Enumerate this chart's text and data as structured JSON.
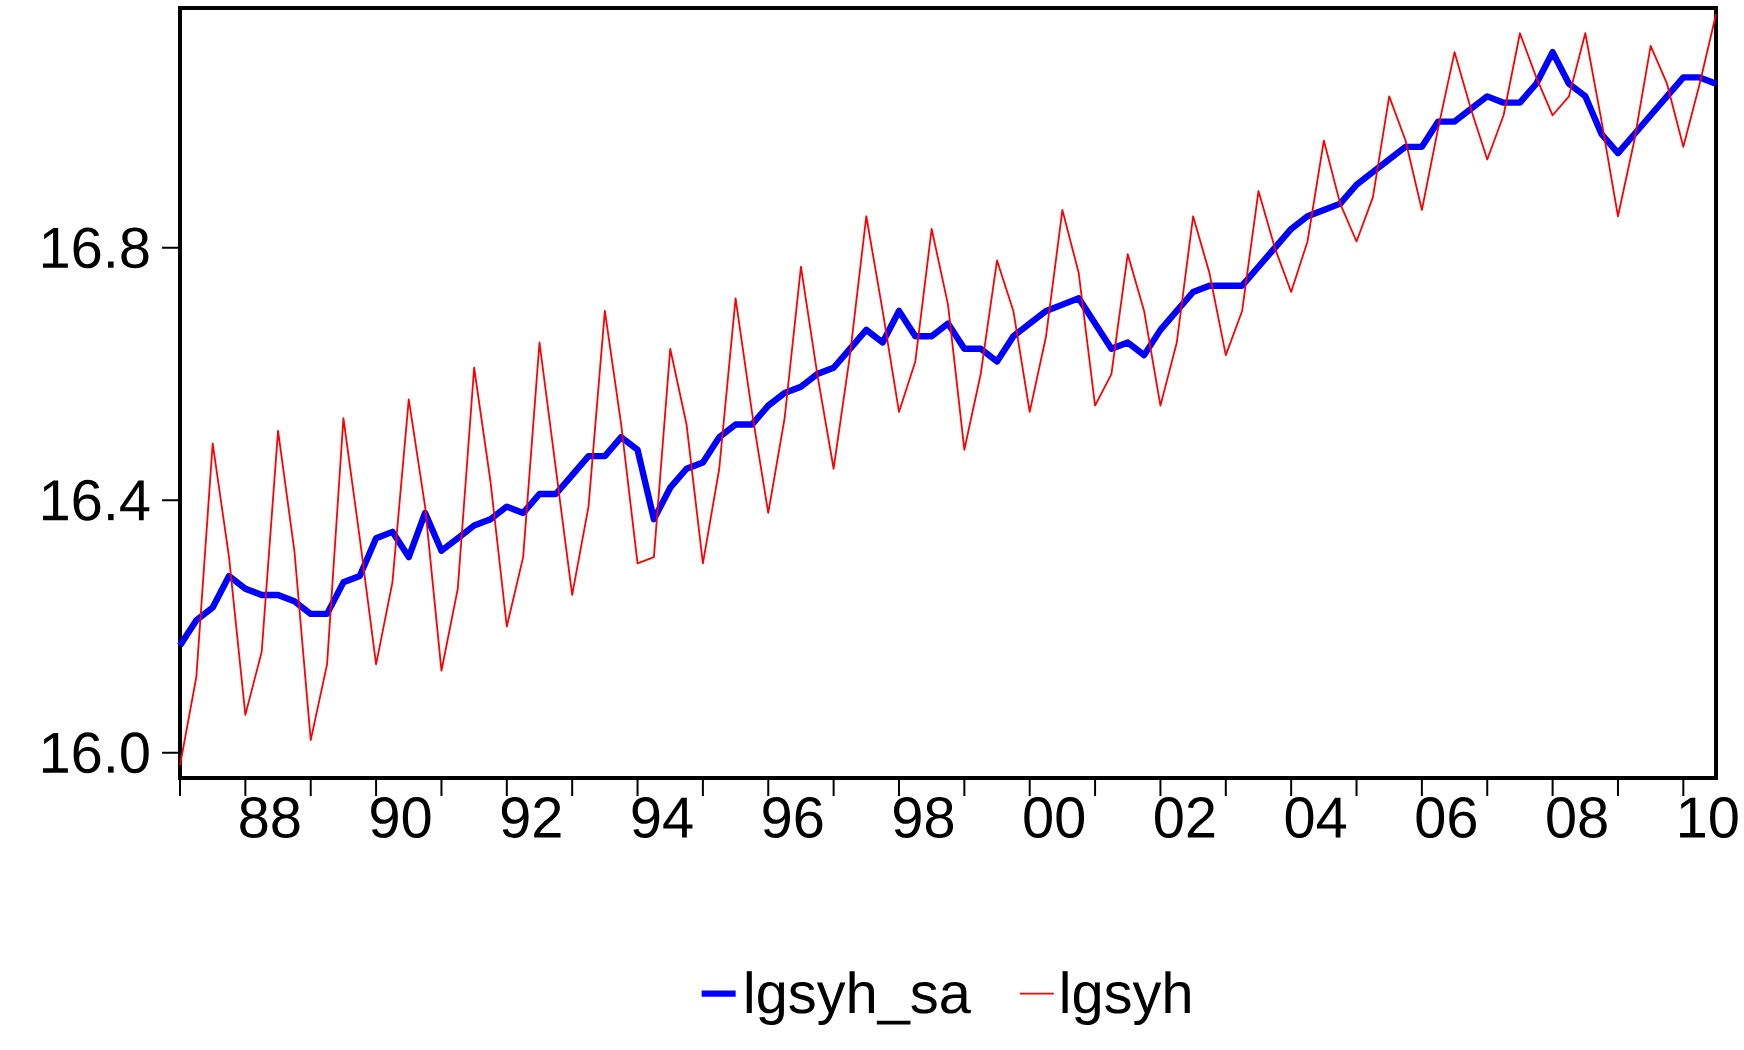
{
  "chart_data": {
    "type": "line",
    "x": [
      "1987-01",
      "1987-04",
      "1987-07",
      "1987-10",
      "1988-01",
      "1988-04",
      "1988-07",
      "1988-10",
      "1989-01",
      "1989-04",
      "1989-07",
      "1989-10",
      "1990-01",
      "1990-04",
      "1990-07",
      "1990-10",
      "1991-01",
      "1991-04",
      "1991-07",
      "1991-10",
      "1992-01",
      "1992-04",
      "1992-07",
      "1992-10",
      "1993-01",
      "1993-04",
      "1993-07",
      "1993-10",
      "1994-01",
      "1994-04",
      "1994-07",
      "1994-10",
      "1995-01",
      "1995-04",
      "1995-07",
      "1995-10",
      "1996-01",
      "1996-04",
      "1996-07",
      "1996-10",
      "1997-01",
      "1997-04",
      "1997-07",
      "1997-10",
      "1998-01",
      "1998-04",
      "1998-07",
      "1998-10",
      "1999-01",
      "1999-04",
      "1999-07",
      "1999-10",
      "2000-01",
      "2000-04",
      "2000-07",
      "2000-10",
      "2001-01",
      "2001-04",
      "2001-07",
      "2001-10",
      "2002-01",
      "2002-04",
      "2002-07",
      "2002-10",
      "2003-01",
      "2003-04",
      "2003-07",
      "2003-10",
      "2004-01",
      "2004-04",
      "2004-07",
      "2004-10",
      "2005-01",
      "2005-04",
      "2005-07",
      "2005-10",
      "2006-01",
      "2006-04",
      "2006-07",
      "2006-10",
      "2007-01",
      "2007-04",
      "2007-07",
      "2007-10",
      "2008-01",
      "2008-04",
      "2008-07",
      "2008-10",
      "2009-01",
      "2009-04",
      "2009-07",
      "2009-10",
      "2010-01",
      "2010-04",
      "2010-07"
    ],
    "series": [
      {
        "name": "lgsyh_sa",
        "color": "#0000ff",
        "values": [
          16.17,
          16.21,
          16.23,
          16.28,
          16.26,
          16.25,
          16.25,
          16.24,
          16.22,
          16.22,
          16.27,
          16.28,
          16.34,
          16.35,
          16.31,
          16.38,
          16.32,
          16.34,
          16.36,
          16.37,
          16.39,
          16.38,
          16.41,
          16.41,
          16.44,
          16.47,
          16.47,
          16.5,
          16.48,
          16.37,
          16.42,
          16.45,
          16.46,
          16.5,
          16.52,
          16.52,
          16.55,
          16.57,
          16.58,
          16.6,
          16.61,
          16.64,
          16.67,
          16.65,
          16.7,
          16.66,
          16.66,
          16.68,
          16.64,
          16.64,
          16.62,
          16.66,
          16.68,
          16.7,
          16.71,
          16.72,
          16.68,
          16.64,
          16.65,
          16.63,
          16.67,
          16.7,
          16.73,
          16.74,
          16.74,
          16.74,
          16.77,
          16.8,
          16.83,
          16.85,
          16.86,
          16.87,
          16.9,
          16.92,
          16.94,
          16.96,
          16.96,
          17.0,
          17.0,
          17.02,
          17.04,
          17.03,
          17.03,
          17.06,
          17.11,
          17.06,
          17.04,
          16.98,
          16.95,
          16.98,
          17.01,
          17.04,
          17.07,
          17.07,
          17.06
        ]
      },
      {
        "name": "lgsyh",
        "color": "#ff0000",
        "values": [
          15.98,
          16.12,
          16.49,
          16.31,
          16.06,
          16.16,
          16.51,
          16.32,
          16.02,
          16.14,
          16.53,
          16.34,
          16.14,
          16.27,
          16.56,
          16.39,
          16.13,
          16.26,
          16.61,
          16.43,
          16.2,
          16.31,
          16.65,
          16.45,
          16.25,
          16.39,
          16.7,
          16.52,
          16.3,
          16.31,
          16.64,
          16.52,
          16.3,
          16.45,
          16.72,
          16.54,
          16.38,
          16.53,
          16.77,
          16.6,
          16.45,
          16.63,
          16.85,
          16.7,
          16.54,
          16.62,
          16.83,
          16.71,
          16.48,
          16.6,
          16.78,
          16.7,
          16.54,
          16.66,
          16.86,
          16.76,
          16.55,
          16.6,
          16.79,
          16.7,
          16.55,
          16.65,
          16.85,
          16.76,
          16.63,
          16.7,
          16.89,
          16.8,
          16.73,
          16.81,
          16.97,
          16.87,
          16.81,
          16.88,
          17.04,
          16.97,
          16.86,
          16.99,
          17.11,
          17.02,
          16.94,
          17.01,
          17.14,
          17.07,
          17.01,
          17.04,
          17.14,
          17.0,
          16.85,
          16.97,
          17.12,
          17.06,
          16.96,
          17.06,
          17.17
        ]
      }
    ],
    "xlim": [
      "1987-01",
      "2010-07"
    ],
    "xticks": [
      {
        "value": "1987",
        "label": null
      },
      {
        "value": "1988",
        "label": null
      },
      {
        "value": "1989",
        "label": null
      },
      {
        "value": "1990",
        "label": null
      },
      {
        "value": "1991",
        "label": null
      },
      {
        "value": "1992",
        "label": null
      },
      {
        "value": "1993",
        "label": null
      },
      {
        "value": "1994",
        "label": null
      },
      {
        "value": "1995",
        "label": null
      },
      {
        "value": "1996",
        "label": null
      },
      {
        "value": "1997",
        "label": null
      },
      {
        "value": "1998",
        "label": null
      },
      {
        "value": "1999",
        "label": null
      },
      {
        "value": "2000",
        "label": null
      },
      {
        "value": "2001",
        "label": null
      },
      {
        "value": "2002",
        "label": null
      },
      {
        "value": "2003",
        "label": null
      },
      {
        "value": "2004",
        "label": null
      },
      {
        "value": "2005",
        "label": null
      },
      {
        "value": "2006",
        "label": null
      },
      {
        "value": "2007",
        "label": null
      },
      {
        "value": "2008",
        "label": null
      },
      {
        "value": "2009",
        "label": null
      },
      {
        "value": "2010",
        "label": null
      },
      {
        "value": "1988-05-16",
        "label": "88"
      },
      {
        "value": "1990-05-16",
        "label": "90"
      },
      {
        "value": "1992-05-16",
        "label": "92"
      },
      {
        "value": "1994-05-16",
        "label": "94"
      },
      {
        "value": "1996-05-16",
        "label": "96"
      },
      {
        "value": "1998-05-16",
        "label": "98"
      },
      {
        "value": "2000-05-16",
        "label": "00"
      },
      {
        "value": "2002-05-16",
        "label": "02"
      },
      {
        "value": "2004-05-16",
        "label": "04"
      },
      {
        "value": "2006-05-16",
        "label": "06"
      },
      {
        "value": "2008-05-16",
        "label": "08"
      },
      {
        "value": "2010-05-16",
        "label": "10"
      }
    ],
    "ylim": [
      15.96,
      17.18
    ],
    "yticks": [
      {
        "value": 16.0,
        "label": "16.0"
      },
      16.4,
      16.8
    ],
    "legend": "bottom"
  }
}
